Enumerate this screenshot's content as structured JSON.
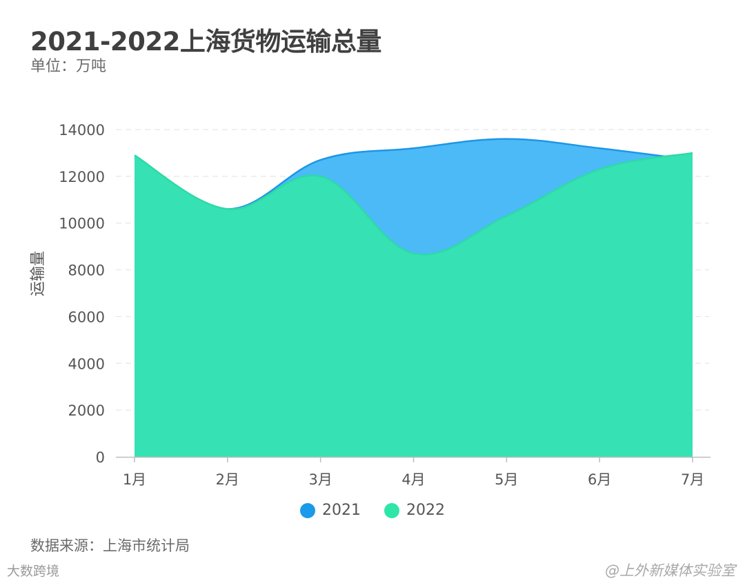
{
  "title": "2021-2022上海货物运输总量",
  "unit_text": "单位：万吨",
  "source_text": "数据来源：上海市统计局",
  "watermark_left": "大数跨境",
  "watermark_right": "@上外新媒体实验室",
  "colors": {
    "2021": "#4bbaf7",
    "2021_line": "#1e96e6",
    "2022": "#36e2b4",
    "2022_line": "#2ed9a6",
    "legend_2021": "#1a9ae9",
    "legend_2022": "#2ee6a8"
  },
  "chart_data": {
    "type": "area",
    "x": [
      "1月",
      "2月",
      "3月",
      "4月",
      "5月",
      "6月",
      "7月"
    ],
    "series": [
      {
        "name": "2021",
        "values": [
          12800,
          10600,
          12700,
          13200,
          13600,
          13200,
          12700
        ]
      },
      {
        "name": "2022",
        "values": [
          12900,
          10600,
          12000,
          8700,
          10300,
          12300,
          13000
        ]
      }
    ],
    "xlabel": "",
    "ylabel": "运输量",
    "ylim": [
      0,
      14000
    ],
    "yticks": [
      0,
      2000,
      4000,
      6000,
      8000,
      10000,
      12000,
      14000
    ],
    "grid": true,
    "legend": "bottom"
  }
}
